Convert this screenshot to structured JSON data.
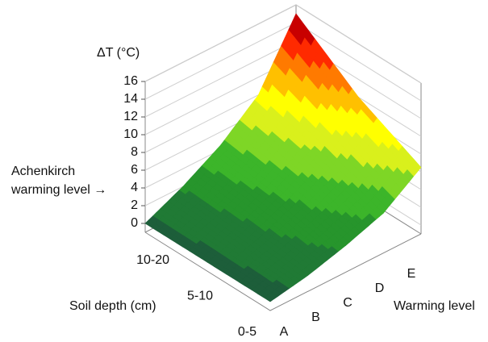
{
  "chart_data": {
    "type": "surface",
    "zlabel": "ΔT (°C)",
    "xlabel": "Warming level",
    "ylabel": "Soil depth (cm)",
    "annotation": [
      "Achenkirch",
      "warming level →"
    ],
    "x": [
      "A",
      "B",
      "C",
      "D",
      "E"
    ],
    "y": [
      "0-5",
      "5-10",
      "10-20"
    ],
    "z": [
      [
        0,
        0.8,
        2,
        3.5,
        6.5
      ],
      [
        0,
        1.5,
        3.5,
        6,
        10
      ],
      [
        0,
        2,
        4.5,
        8,
        15
      ]
    ],
    "zlim": [
      -1,
      16
    ],
    "zticks": [
      0,
      2,
      4,
      6,
      8,
      10,
      12,
      14,
      16
    ],
    "grid": true,
    "colormap": [
      "#1d5e3a",
      "#207a35",
      "#27952c",
      "#3cb52a",
      "#7ed626",
      "#d9f01c",
      "#ffff00",
      "#ffc000",
      "#ff7a00",
      "#ff2a00",
      "#c80000",
      "#7a0f0f"
    ]
  }
}
